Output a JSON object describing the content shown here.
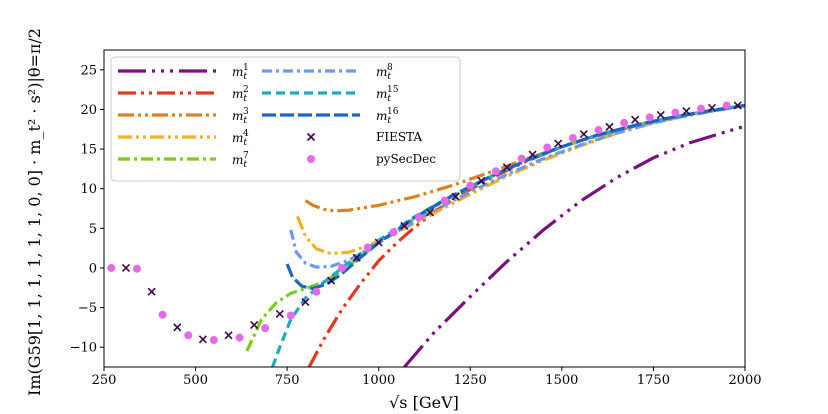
{
  "chart_data": {
    "type": "line",
    "xlabel": "√s  [GeV]",
    "ylabel": "Im(G59[1, 1, 1, 1, 1, 1, 0, 0] · m_t² · s²)|θ=π/2",
    "xlim": [
      250,
      2000
    ],
    "ylim": [
      -12.5,
      27.5
    ],
    "xticks": [
      "250",
      "500",
      "750",
      "1000",
      "1250",
      "1500",
      "1750",
      "2000"
    ],
    "yticks": [
      "−10",
      "−5",
      "0",
      "5",
      "10",
      "15",
      "20",
      "25"
    ],
    "legend_position": "top-left",
    "series": [
      {
        "name": "m_t^1",
        "sup": "1",
        "color": "#7b0f7f",
        "dash": "28 6 3 6 3 6 3 6",
        "x": [
          1070,
          1150,
          1250,
          1350,
          1450,
          1550,
          1650,
          1750,
          1850,
          2000
        ],
        "y": [
          -12.5,
          -8.2,
          -3.6,
          0.8,
          4.8,
          8.4,
          11.4,
          13.9,
          15.8,
          17.9
        ]
      },
      {
        "name": "m_t^2",
        "sup": "2",
        "color": "#e03a1c",
        "dash": "18 5 3 5 3 5",
        "x": [
          810,
          850,
          900,
          950,
          1000,
          1050,
          1100,
          1150,
          1200,
          1300,
          1400,
          1500,
          1600,
          1700,
          1800,
          1900,
          2000
        ],
        "y": [
          -12.5,
          -9.0,
          -5.2,
          -2.0,
          0.9,
          3.2,
          5.2,
          7.0,
          8.6,
          11.2,
          13.4,
          15.3,
          16.8,
          18.0,
          19.0,
          19.8,
          20.5
        ]
      },
      {
        "name": "m_t^3",
        "sup": "3",
        "color": "#e0801c",
        "dash": "16 4 3 4 3 4",
        "x": [
          800,
          820,
          850,
          880,
          920,
          1000,
          1100,
          1200,
          1300,
          1400,
          1500,
          1600,
          1700,
          1800,
          1900,
          2000
        ],
        "y": [
          8.5,
          7.9,
          7.4,
          7.2,
          7.3,
          7.9,
          9.0,
          10.4,
          12.0,
          13.7,
          15.3,
          16.7,
          17.9,
          18.9,
          19.8,
          20.5
        ]
      },
      {
        "name": "m_t^4",
        "sup": "4",
        "color": "#f5b01e",
        "dash": "14 4 3 4 3 4",
        "x": [
          778,
          800,
          830,
          870,
          920,
          970,
          1050,
          1150,
          1250,
          1350,
          1450,
          1550,
          1650,
          1750,
          1850,
          2000
        ],
        "y": [
          6.5,
          4.0,
          2.4,
          1.8,
          2.0,
          2.8,
          4.5,
          6.9,
          9.3,
          11.6,
          13.6,
          15.4,
          17.0,
          18.3,
          19.3,
          20.5
        ]
      },
      {
        "name": "m_t^7",
        "sup": "7",
        "color": "#7ccc1e",
        "dash": "12 4 3 4",
        "x": [
          640,
          680,
          720,
          760,
          800,
          850,
          900,
          950,
          1000,
          1100,
          1200,
          1300,
          1400,
          1500,
          1600,
          1700,
          1800,
          1900,
          2000
        ],
        "y": [
          -10.5,
          -6.5,
          -4.4,
          -3.2,
          -2.6,
          -1.8,
          -0.3,
          1.4,
          3.2,
          6.3,
          9.0,
          11.4,
          13.5,
          15.3,
          16.8,
          18.0,
          19.0,
          19.8,
          20.5
        ]
      },
      {
        "name": "m_t^8",
        "sup": "8",
        "color": "#6f9aec",
        "dash": "10 4 3 4",
        "x": [
          760,
          775,
          800,
          830,
          870,
          920,
          980,
          1050,
          1150,
          1250,
          1350,
          1450,
          1550,
          1650,
          1750,
          1850,
          2000
        ],
        "y": [
          4.8,
          2.0,
          0.6,
          0.1,
          0.2,
          1.0,
          2.6,
          4.6,
          7.2,
          9.6,
          11.8,
          13.8,
          15.5,
          17.0,
          18.3,
          19.3,
          20.5
        ]
      },
      {
        "name": "m_t^15",
        "sup": "15",
        "color": "#23a8c4",
        "dash": "9 5",
        "x": [
          710,
          730,
          760,
          800,
          850,
          900,
          950,
          1000,
          1100,
          1200,
          1300,
          1400,
          1500,
          1600,
          1700,
          1800,
          1900,
          2000
        ],
        "y": [
          -12.5,
          -10.0,
          -6.5,
          -3.8,
          -1.8,
          0.0,
          1.8,
          3.5,
          6.5,
          9.1,
          11.4,
          13.5,
          15.3,
          16.8,
          18.0,
          19.0,
          19.8,
          20.5
        ]
      },
      {
        "name": "m_t^16",
        "sup": "16",
        "color": "#1a66c8",
        "dash": "14 4",
        "x": [
          750,
          765,
          790,
          820,
          860,
          900,
          950,
          1000,
          1100,
          1200,
          1300,
          1400,
          1500,
          1600,
          1700,
          1800,
          1900,
          2000
        ],
        "y": [
          0.5,
          -1.2,
          -2.3,
          -2.6,
          -2.0,
          -0.7,
          1.3,
          3.2,
          6.4,
          9.1,
          11.4,
          13.5,
          15.3,
          16.8,
          18.0,
          19.0,
          19.8,
          20.5
        ]
      }
    ],
    "markers": [
      {
        "name": "FIESTA",
        "symbol": "x",
        "color": "#3a0848",
        "x": [
          310,
          380,
          450,
          520,
          590,
          660,
          730,
          800,
          870,
          940,
          1000,
          1070,
          1140,
          1210,
          1280,
          1350,
          1420,
          1490,
          1560,
          1630,
          1700,
          1770,
          1840,
          1910,
          1980
        ],
        "y": [
          0.0,
          -3.0,
          -7.5,
          -9.0,
          -8.5,
          -7.2,
          -5.8,
          -4.3,
          -1.6,
          1.3,
          3.2,
          5.3,
          7.0,
          9.0,
          11.0,
          12.7,
          14.3,
          15.7,
          16.9,
          17.8,
          18.7,
          19.3,
          19.8,
          20.2,
          20.5
        ]
      },
      {
        "name": "pySecDec",
        "symbol": "o",
        "color": "#e66ae8",
        "x": [
          270,
          340,
          410,
          480,
          550,
          620,
          690,
          760,
          830,
          900,
          970,
          1040,
          1110,
          1180,
          1250,
          1320,
          1390,
          1460,
          1530,
          1600,
          1670,
          1740,
          1810,
          1880,
          1950
        ],
        "y": [
          0.0,
          -0.1,
          -5.9,
          -8.5,
          -9.1,
          -8.8,
          -7.6,
          -6.0,
          -3.0,
          0.0,
          2.6,
          4.5,
          6.4,
          8.5,
          10.4,
          12.2,
          13.8,
          15.2,
          16.4,
          17.4,
          18.3,
          19.0,
          19.6,
          20.1,
          20.5
        ]
      }
    ]
  }
}
